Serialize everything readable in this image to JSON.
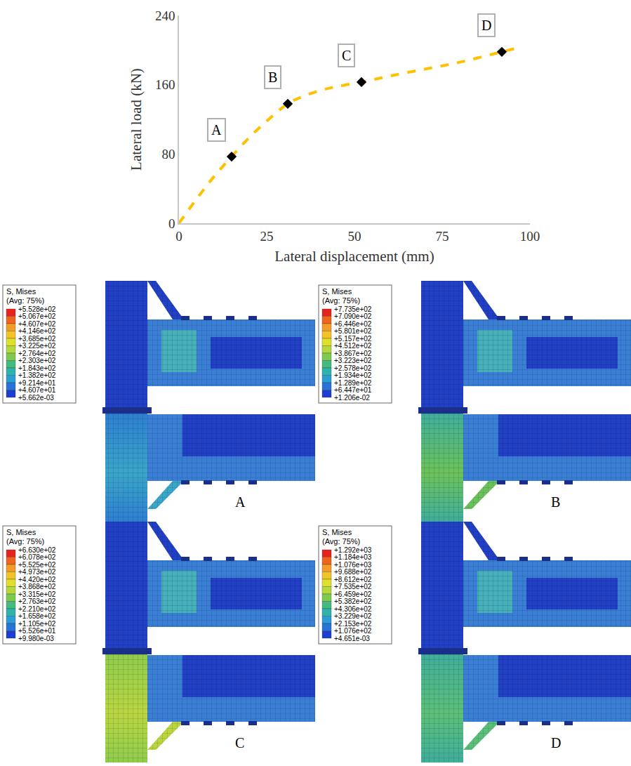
{
  "chart_data": {
    "type": "line",
    "x_label": "Lateral displacement (mm)",
    "y_label": "Lateral load (kN)",
    "xlim": [
      0,
      100
    ],
    "xticks": [
      0,
      25,
      50,
      75,
      100
    ],
    "ylim": [
      0,
      240
    ],
    "yticks": [
      0,
      80,
      160,
      240
    ],
    "grid": false,
    "series": [
      {
        "type": "line",
        "color": "#ffc000",
        "line_style": "dash",
        "x": [
          0,
          5,
          10,
          15,
          20,
          25,
          31,
          35,
          40,
          45,
          52,
          60,
          70,
          80,
          92,
          97
        ],
        "values": [
          0,
          28,
          54,
          77,
          99,
          118,
          138,
          146,
          153,
          158,
          163,
          170,
          178,
          186,
          198,
          203
        ]
      },
      {
        "type": "scatter",
        "color": "#000000",
        "marker": "diamond",
        "x": [
          15,
          31,
          52,
          92
        ],
        "values": [
          77,
          138,
          163,
          198
        ]
      }
    ],
    "annotations": [
      {
        "text": "A",
        "x": 15,
        "y": 77
      },
      {
        "text": "B",
        "x": 31,
        "y": 138
      },
      {
        "text": "C",
        "x": 52,
        "y": 163
      },
      {
        "text": "D",
        "x": 92,
        "y": 198
      }
    ]
  },
  "contour_panels": [
    {
      "label": "A",
      "legend_title": "S, Mises",
      "legend_subtitle": "(Avg: 75%)",
      "legend_values": [
        "+5.528e+02",
        "+5.067e+02",
        "+4.607e+02",
        "+4.146e+02",
        "+3.685e+02",
        "+3.225e+02",
        "+2.764e+02",
        "+2.303e+02",
        "+1.843e+02",
        "+1.382e+02",
        "+9.214e+01",
        "+4.607e+01",
        "+5.662e-03"
      ]
    },
    {
      "label": "B",
      "legend_title": "S, Mises",
      "legend_subtitle": "(Avg: 75%)",
      "legend_values": [
        "+7.735e+02",
        "+7.090e+02",
        "+6.446e+02",
        "+5.801e+02",
        "+5.157e+02",
        "+4.512e+02",
        "+3.867e+02",
        "+3.223e+02",
        "+2.578e+02",
        "+1.934e+02",
        "+1.289e+02",
        "+6.447e+01",
        "+1.206e-02"
      ]
    },
    {
      "label": "C",
      "legend_title": "S, Mises",
      "legend_subtitle": "(Avg: 75%)",
      "legend_values": [
        "+6.630e+02",
        "+6.078e+02",
        "+5.525e+02",
        "+4.973e+02",
        "+4.420e+02",
        "+3.868e+02",
        "+3.315e+02",
        "+2.763e+02",
        "+2.210e+02",
        "+1.658e+02",
        "+1.105e+02",
        "+5.526e+01",
        "+9.980e-03"
      ]
    },
    {
      "label": "D",
      "legend_title": "S, Mises",
      "legend_subtitle": "(Avg: 75%)",
      "legend_values": [
        "+1.292e+03",
        "+1.184e+03",
        "+1.076e+03",
        "+9.688e+02",
        "+8.612e+02",
        "+7.535e+02",
        "+6.459e+02",
        "+5.382e+02",
        "+4.306e+02",
        "+3.229e+02",
        "+2.153e+02",
        "+1.076e+02",
        "+4.651e-03"
      ]
    }
  ]
}
